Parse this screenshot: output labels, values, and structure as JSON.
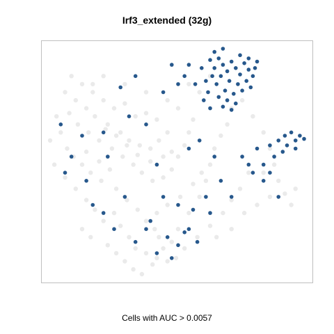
{
  "chart_data": {
    "type": "scatter",
    "title": "Irf3_extended (32g)",
    "xlabel": "Cells with AUC > 0.0057",
    "ylabel": "",
    "axes_visible": false,
    "grid": false,
    "legend": "none",
    "colors": {
      "background_cells": "#d9d9d9",
      "highlighted_cells": "#1b4f86",
      "frame": "#bfbfbf"
    },
    "series": [
      {
        "role": "background",
        "points": [
          [
            -35,
            55
          ],
          [
            -30,
            50
          ],
          [
            -25,
            45
          ],
          [
            -20,
            40
          ],
          [
            -15,
            35
          ],
          [
            -10,
            38
          ],
          [
            -5,
            30
          ],
          [
            0,
            32
          ],
          [
            5,
            28
          ],
          [
            -38,
            45
          ],
          [
            -33,
            40
          ],
          [
            -28,
            35
          ],
          [
            -24,
            30
          ],
          [
            -18,
            25
          ],
          [
            -12,
            20
          ],
          [
            -8,
            15
          ],
          [
            -3,
            12
          ],
          [
            2,
            10
          ],
          [
            6,
            15
          ],
          [
            10,
            20
          ],
          [
            -36,
            32
          ],
          [
            -32,
            25
          ],
          [
            -27,
            20
          ],
          [
            -22,
            15
          ],
          [
            -16,
            10
          ],
          [
            -11,
            5
          ],
          [
            -6,
            0
          ],
          [
            -2,
            -5
          ],
          [
            3,
            -10
          ],
          [
            8,
            -8
          ],
          [
            12,
            -3
          ],
          [
            15,
            5
          ],
          [
            18,
            12
          ],
          [
            20,
            20
          ],
          [
            22,
            28
          ],
          [
            -40,
            20
          ],
          [
            -37,
            10
          ],
          [
            -34,
            5
          ],
          [
            -30,
            0
          ],
          [
            -26,
            -5
          ],
          [
            -21,
            -10
          ],
          [
            -14,
            -15
          ],
          [
            -9,
            -22
          ],
          [
            -4,
            -28
          ],
          [
            0,
            -35
          ],
          [
            4,
            -40
          ],
          [
            6,
            -45
          ],
          [
            -15,
            -30
          ],
          [
            -12,
            -38
          ],
          [
            -8,
            -45
          ],
          [
            -5,
            -52
          ],
          [
            0,
            -55
          ],
          [
            5,
            -58
          ],
          [
            10,
            -60
          ],
          [
            -18,
            -50
          ],
          [
            -14,
            -55
          ],
          [
            -10,
            -60
          ],
          [
            -6,
            -65
          ],
          [
            -2,
            -68
          ],
          [
            3,
            -62
          ],
          [
            8,
            -52
          ],
          [
            12,
            -48
          ],
          [
            15,
            -40
          ],
          [
            20,
            -30
          ],
          [
            25,
            -20
          ],
          [
            28,
            -10
          ],
          [
            30,
            0
          ],
          [
            32,
            10
          ],
          [
            35,
            18
          ],
          [
            38,
            25
          ],
          [
            40,
            35
          ],
          [
            45,
            40
          ],
          [
            50,
            30
          ],
          [
            55,
            20
          ],
          [
            58,
            10
          ],
          [
            60,
            0
          ],
          [
            62,
            -10
          ],
          [
            65,
            -18
          ],
          [
            68,
            -25
          ],
          [
            70,
            -15
          ],
          [
            48,
            -5
          ],
          [
            44,
            -15
          ],
          [
            40,
            -22
          ],
          [
            36,
            -30
          ],
          [
            30,
            -38
          ],
          [
            -42,
            30
          ],
          [
            -45,
            15
          ],
          [
            -43,
            0
          ],
          [
            -38,
            -8
          ],
          [
            -33,
            -15
          ],
          [
            -28,
            -22
          ],
          [
            -24,
            -28
          ],
          [
            -20,
            -35
          ],
          [
            -25,
            50
          ],
          [
            -20,
            55
          ],
          [
            -10,
            50
          ],
          [
            0,
            45
          ],
          [
            10,
            40
          ],
          [
            15,
            35
          ],
          [
            25,
            45
          ],
          [
            20,
            50
          ],
          [
            30,
            55
          ],
          [
            8,
            5
          ],
          [
            12,
            8
          ],
          [
            -28,
            8
          ],
          [
            -22,
            2
          ],
          [
            -17,
            -3
          ],
          [
            55,
            -5
          ],
          [
            58,
            -20
          ],
          [
            52,
            -25
          ],
          [
            46,
            -30
          ],
          [
            24,
            -45
          ],
          [
            18,
            -52
          ],
          [
            14,
            -58
          ],
          [
            -30,
            -40
          ],
          [
            -26,
            -45
          ],
          [
            5,
            -30
          ],
          [
            10,
            -25
          ],
          [
            16,
            -20
          ],
          [
            22,
            -12
          ],
          [
            26,
            -5
          ],
          [
            2,
            2
          ],
          [
            -4,
            6
          ],
          [
            -9,
            12
          ],
          [
            -14,
            18
          ],
          [
            -19,
            22
          ],
          [
            33,
            -45
          ],
          [
            40,
            -40
          ]
        ]
      },
      {
        "role": "highlighted",
        "label": "Cells with AUC > 0.0057",
        "points": [
          [
            30,
            65
          ],
          [
            32,
            60
          ],
          [
            34,
            66
          ],
          [
            36,
            62
          ],
          [
            38,
            58
          ],
          [
            40,
            64
          ],
          [
            42,
            60
          ],
          [
            44,
            56
          ],
          [
            46,
            63
          ],
          [
            48,
            59
          ],
          [
            50,
            55
          ],
          [
            35,
            55
          ],
          [
            39,
            52
          ],
          [
            43,
            50
          ],
          [
            47,
            52
          ],
          [
            51,
            60
          ],
          [
            33,
            50
          ],
          [
            37,
            46
          ],
          [
            41,
            44
          ],
          [
            45,
            46
          ],
          [
            49,
            48
          ],
          [
            31,
            55
          ],
          [
            26,
            60
          ],
          [
            28,
            52
          ],
          [
            34,
            42
          ],
          [
            38,
            40
          ],
          [
            42,
            38
          ],
          [
            36,
            36
          ],
          [
            40,
            34
          ],
          [
            29,
            45
          ],
          [
            32,
            70
          ],
          [
            36,
            72
          ],
          [
            44,
            68
          ],
          [
            48,
            66
          ],
          [
            52,
            64
          ],
          [
            20,
            62
          ],
          [
            18,
            55
          ],
          [
            23,
            50
          ],
          [
            27,
            40
          ],
          [
            30,
            35
          ],
          [
            12,
            62
          ],
          [
            15,
            50
          ],
          [
            8,
            45
          ],
          [
            -5,
            55
          ],
          [
            -12,
            48
          ],
          [
            0,
            25
          ],
          [
            -20,
            20
          ],
          [
            -30,
            18
          ],
          [
            -35,
            5
          ],
          [
            -28,
            -10
          ],
          [
            -25,
            -25
          ],
          [
            -15,
            -40
          ],
          [
            5,
            0
          ],
          [
            8,
            -20
          ],
          [
            15,
            -25
          ],
          [
            22,
            -28
          ],
          [
            28,
            -20
          ],
          [
            35,
            -10
          ],
          [
            45,
            5
          ],
          [
            50,
            -5
          ],
          [
            55,
            -10
          ],
          [
            58,
            -5
          ],
          [
            62,
            -20
          ],
          [
            60,
            5
          ],
          [
            62,
            15
          ],
          [
            65,
            18
          ],
          [
            68,
            20
          ],
          [
            70,
            15
          ],
          [
            72,
            18
          ],
          [
            74,
            16
          ],
          [
            66,
            12
          ],
          [
            70,
            10
          ],
          [
            64,
            8
          ],
          [
            58,
            12
          ],
          [
            52,
            10
          ],
          [
            48,
            0
          ],
          [
            40,
            -20
          ],
          [
            30,
            -30
          ],
          [
            20,
            -40
          ],
          [
            10,
            -45
          ],
          [
            0,
            -40
          ],
          [
            -5,
            -48
          ],
          [
            5,
            -55
          ],
          [
            15,
            -50
          ],
          [
            18,
            -42
          ],
          [
            2,
            -35
          ],
          [
            -10,
            -20
          ],
          [
            -18,
            5
          ],
          [
            -8,
            30
          ],
          [
            20,
            10
          ],
          [
            25,
            15
          ],
          [
            -40,
            25
          ],
          [
            -38,
            -5
          ],
          [
            -20,
            -30
          ],
          [
            12,
            -58
          ],
          [
            24,
            -48
          ],
          [
            32,
            5
          ],
          [
            55,
            0
          ]
        ]
      }
    ]
  }
}
